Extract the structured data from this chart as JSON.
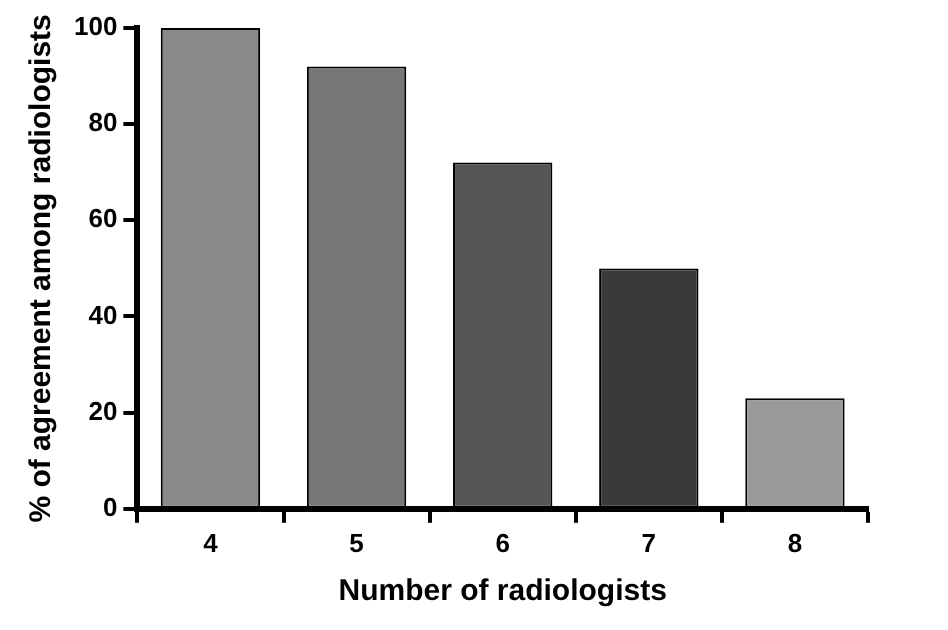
{
  "chart_data": {
    "type": "bar",
    "xlabel": "Number of radiologists",
    "ylabel": "% of agreement among radiologists",
    "categories": [
      "4",
      "5",
      "6",
      "7",
      "8"
    ],
    "values": [
      100,
      92,
      72,
      50,
      23
    ],
    "colors": [
      "#8a8a8a",
      "#777777",
      "#555555",
      "#3a3a3a",
      "#9a9a9a"
    ],
    "ylim": [
      0,
      100
    ],
    "yticks": [
      0,
      20,
      40,
      60,
      80,
      100
    ],
    "grid": false,
    "legend": false
  }
}
